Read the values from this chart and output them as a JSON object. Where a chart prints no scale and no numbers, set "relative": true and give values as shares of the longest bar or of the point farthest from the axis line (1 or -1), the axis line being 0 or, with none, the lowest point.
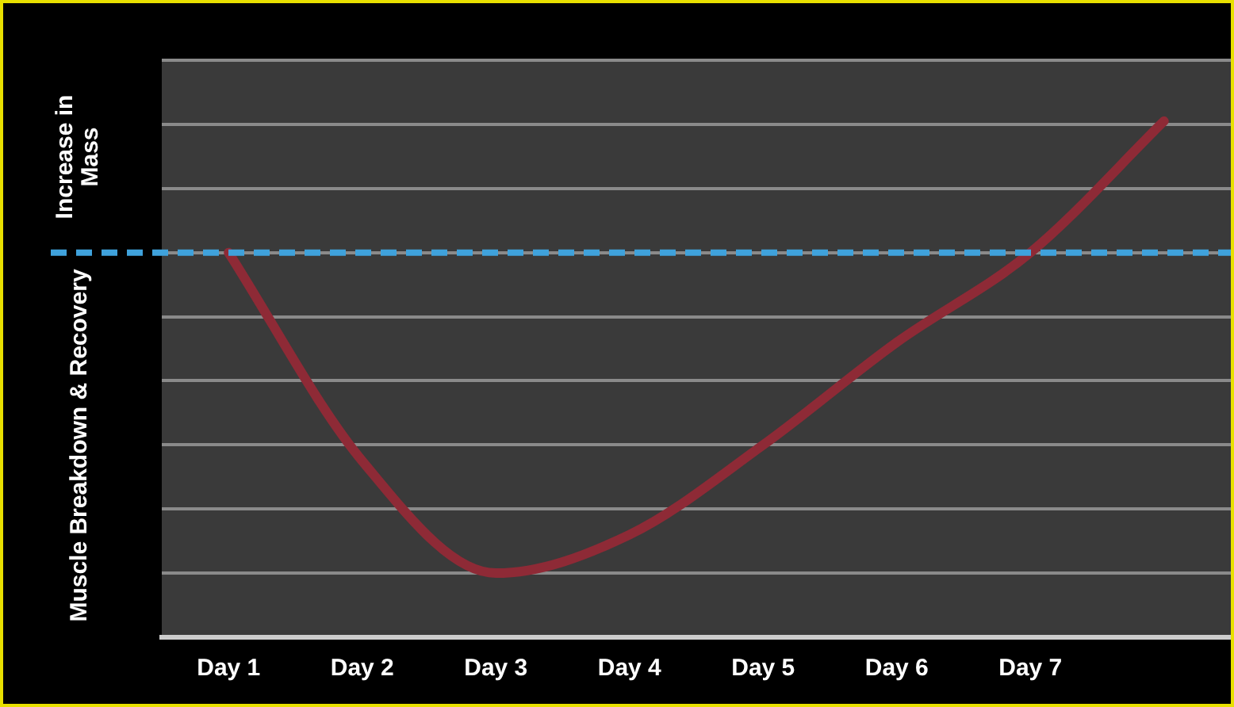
{
  "chart_data": {
    "type": "line",
    "relative": true,
    "categories": [
      "Day 1",
      "Day 2",
      "Day 3",
      "Day 4",
      "Day 5",
      "Day 6",
      "Day 7",
      null
    ],
    "series": [
      {
        "color": "#8e2a36",
        "values": [
          0,
          -0.65,
          -1,
          -0.88,
          -0.6,
          -0.28,
          0,
          0.41
        ]
      }
    ],
    "ref_lines": [
      {
        "axis": "y",
        "value": 0,
        "color": "#3fa2dc",
        "line_style": "dashed"
      }
    ],
    "annotations": [
      "Increase in Mass",
      "Muscle Breakdown & Recovery"
    ],
    "grid": "y",
    "legend": false,
    "marker": "none",
    "line_style": "solid"
  }
}
